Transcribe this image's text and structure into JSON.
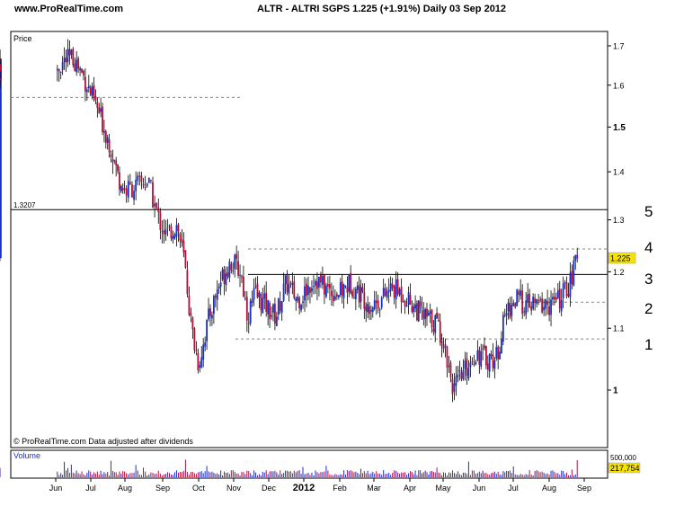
{
  "header": {
    "site": "www.ProRealTime.com",
    "title": "ALTR - ALTRI SGPS   1.225 (+1.91%)   Daily  03 Sep 2012"
  },
  "price_panel": {
    "label": "Price",
    "reference_label": "1.3207",
    "last_price": "1.225",
    "footer": "© ProRealTime.com  Data adjusted after dividends",
    "y_ticks": [
      "1.7",
      "1.6",
      "1.5",
      "1.4",
      "1.3",
      "1.2",
      "1.1",
      "1"
    ]
  },
  "volume_panel": {
    "label": "Volume",
    "scale_label": "500,000",
    "last_volume": "217,754"
  },
  "annotations": [
    "5",
    "4",
    "3",
    "2",
    "1"
  ],
  "colors": {
    "up": "#1a2fc8",
    "down": "#b0103a",
    "badge": "#f5e200",
    "frame": "#000000",
    "dashed": "#888888"
  },
  "chart_data": {
    "type": "candlestick",
    "title": "ALTR - ALTRI SGPS 1.225 (+1.91%) Daily 03 Sep 2012",
    "x_labels": [
      "Jun",
      "Jul",
      "Aug",
      "Sep",
      "Oct",
      "Nov",
      "Dec",
      "2012",
      "Feb",
      "Mar",
      "Apr",
      "May",
      "Jun",
      "Jul",
      "Aug",
      "Sep"
    ],
    "y_scale": "log",
    "ylim": [
      0.93,
      1.76
    ],
    "y_ticks": [
      1.7,
      1.6,
      1.5,
      1.4,
      1.3,
      1.2,
      1.1,
      1.0
    ],
    "close_path": [
      [
        0,
        1.64
      ],
      [
        0.25,
        1.66
      ],
      [
        0.5,
        1.67
      ],
      [
        0.75,
        1.63
      ],
      [
        1,
        1.58
      ],
      [
        1.3,
        1.52
      ],
      [
        1.6,
        1.45
      ],
      [
        1.8,
        1.39
      ],
      [
        2,
        1.36
      ],
      [
        2.3,
        1.37
      ],
      [
        2.6,
        1.38
      ],
      [
        2.9,
        1.3
      ],
      [
        3.1,
        1.27
      ],
      [
        3.4,
        1.29
      ],
      [
        3.6,
        1.22
      ],
      [
        3.8,
        1.1
      ],
      [
        4,
        1.04
      ],
      [
        4.3,
        1.12
      ],
      [
        4.6,
        1.18
      ],
      [
        4.9,
        1.22
      ],
      [
        5.2,
        1.2
      ],
      [
        5.4,
        1.12
      ],
      [
        5.6,
        1.16
      ],
      [
        5.9,
        1.14
      ],
      [
        6.2,
        1.12
      ],
      [
        6.5,
        1.18
      ],
      [
        6.8,
        1.15
      ],
      [
        7,
        1.16
      ],
      [
        7.3,
        1.19
      ],
      [
        7.6,
        1.17
      ],
      [
        8,
        1.16
      ],
      [
        8.3,
        1.18
      ],
      [
        8.6,
        1.16
      ],
      [
        8.9,
        1.14
      ],
      [
        9.2,
        1.15
      ],
      [
        9.5,
        1.17
      ],
      [
        9.8,
        1.16
      ],
      [
        10.1,
        1.14
      ],
      [
        10.4,
        1.12
      ],
      [
        10.8,
        1.11
      ],
      [
        11,
        1.08
      ],
      [
        11.3,
        1.0
      ],
      [
        11.6,
        1.03
      ],
      [
        11.9,
        1.06
      ],
      [
        12.2,
        1.05
      ],
      [
        12.5,
        1.05
      ],
      [
        12.8,
        1.13
      ],
      [
        13.1,
        1.15
      ],
      [
        13.4,
        1.14
      ],
      [
        13.7,
        1.14
      ],
      [
        14,
        1.14
      ],
      [
        14.3,
        1.15
      ],
      [
        14.6,
        1.18
      ],
      [
        14.8,
        1.225
      ]
    ],
    "horizontal_levels": [
      {
        "value": 1.3207,
        "style": "solid",
        "label": "1.3207"
      },
      {
        "value": 1.57,
        "style": "dashed"
      },
      {
        "value": 1.243,
        "style": "dashed"
      },
      {
        "value": 1.195,
        "style": "solid"
      },
      {
        "value": 1.145,
        "style": "dashed"
      },
      {
        "value": 1.082,
        "style": "dashed"
      }
    ],
    "last_value": 1.225,
    "volume_last": 217754,
    "volume_scale": 500000
  }
}
